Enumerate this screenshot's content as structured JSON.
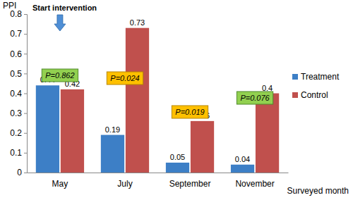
{
  "chart_data": {
    "type": "bar",
    "y_label": "PPI",
    "x_label": "Surveyed month",
    "categories": [
      "May",
      "July",
      "September",
      "November"
    ],
    "series": [
      {
        "name": "Treatment",
        "color": "#3d7fc6",
        "values": [
          0.44,
          0.19,
          0.05,
          0.04
        ]
      },
      {
        "name": "Control",
        "color": "#c0504d",
        "values": [
          0.42,
          0.73,
          0.26,
          0.4
        ]
      }
    ],
    "ylim": [
      0,
      0.8
    ],
    "yticks": [
      0,
      0.1,
      0.2,
      0.3,
      0.4,
      0.5,
      0.6,
      0.7,
      0.8
    ],
    "data_labels": true,
    "legend": "right",
    "annotations": [
      "Start intervention",
      "P=0.862",
      "P=0.024",
      "P=0.019",
      "P=0.076"
    ]
  }
}
